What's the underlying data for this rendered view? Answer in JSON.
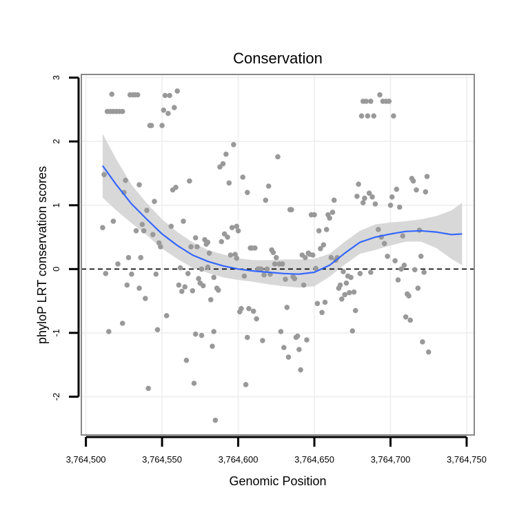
{
  "chart_data": {
    "type": "scatter",
    "title": "Conservation",
    "xlabel": "Genomic Position",
    "ylabel": "phyloP LRT conservation scores",
    "xlim": [
      3764497,
      3764755
    ],
    "ylim": [
      -2.6,
      3.05
    ],
    "x_ticks": [
      3764500,
      3764550,
      3764600,
      3764650,
      3764700,
      3764750
    ],
    "x_tick_labels": [
      "3,764,500",
      "3,764,550",
      "3,764,600",
      "3,764,650",
      "3,764,700",
      "3,764,750"
    ],
    "y_ticks": [
      -2,
      -1,
      0,
      1,
      2,
      3
    ],
    "y_tick_labels": [
      "-2",
      "-1",
      "0",
      "1",
      "2",
      "3"
    ],
    "grid": true,
    "reference_line": {
      "y": 0,
      "style": "dashed"
    },
    "colors": {
      "points": "#999999",
      "smooth_line": "#3366ff",
      "confidence_band": "#d4d4d4",
      "panel_border": "#888888",
      "grid": "#eeeeee",
      "reference_line": "#000000"
    },
    "points": [
      [
        3764511,
        0.65
      ],
      [
        3764512,
        1.48
      ],
      [
        3764513,
        -0.07
      ],
      [
        3764514,
        2.47
      ],
      [
        3764515,
        -0.98
      ],
      [
        3764516,
        2.47
      ],
      [
        3764517,
        2.74
      ],
      [
        3764518,
        2.47
      ],
      [
        3764518,
        0.75
      ],
      [
        3764520,
        2.47
      ],
      [
        3764521,
        0.08
      ],
      [
        3764522,
        2.47
      ],
      [
        3764524,
        -0.85
      ],
      [
        3764524,
        2.47
      ],
      [
        3764525,
        1.2
      ],
      [
        3764526,
        1.39
      ],
      [
        3764527,
        -0.25
      ],
      [
        3764528,
        0.18
      ],
      [
        3764529,
        2.73
      ],
      [
        3764530,
        -0.08
      ],
      [
        3764531,
        2.73
      ],
      [
        3764532,
        2.73
      ],
      [
        3764533,
        0.6
      ],
      [
        3764534,
        2.73
      ],
      [
        3764535,
        1.32
      ],
      [
        3764535,
        -0.3
      ],
      [
        3764536,
        0.18
      ],
      [
        3764537,
        0.7
      ],
      [
        3764538,
        0.6
      ],
      [
        3764539,
        -0.46
      ],
      [
        3764540,
        0.92
      ],
      [
        3764541,
        -1.87
      ],
      [
        3764542,
        2.25
      ],
      [
        3764543,
        2.25
      ],
      [
        3764544,
        0.54
      ],
      [
        3764545,
        1.06
      ],
      [
        3764546,
        -0.08
      ],
      [
        3764547,
        -0.95
      ],
      [
        3764548,
        0.41
      ],
      [
        3764549,
        0.35
      ],
      [
        3764550,
        2.25
      ],
      [
        3764551,
        2.49
      ],
      [
        3764552,
        2.72
      ],
      [
        3764553,
        -0.73
      ],
      [
        3764554,
        2.44
      ],
      [
        3764555,
        2.72
      ],
      [
        3764556,
        0.67
      ],
      [
        3764557,
        1.24
      ],
      [
        3764558,
        2.53
      ],
      [
        3764559,
        1.28
      ],
      [
        3764560,
        2.79
      ],
      [
        3764561,
        -0.25
      ],
      [
        3764562,
        0.02
      ],
      [
        3764563,
        -0.35
      ],
      [
        3764564,
        0.75
      ],
      [
        3764565,
        -0.28
      ],
      [
        3764566,
        -1.43
      ],
      [
        3764567,
        -0.07
      ],
      [
        3764568,
        1.38
      ],
      [
        3764569,
        0.35
      ],
      [
        3764570,
        -0.34
      ],
      [
        3764571,
        -1.79
      ],
      [
        3764572,
        0.49
      ],
      [
        3764572,
        -1.02
      ],
      [
        3764573,
        0.35
      ],
      [
        3764574,
        -0.15
      ],
      [
        3764575,
        -0.22
      ],
      [
        3764576,
        -1.04
      ],
      [
        3764576,
        0.0
      ],
      [
        3764577,
        -0.26
      ],
      [
        3764578,
        0.46
      ],
      [
        3764579,
        0.39
      ],
      [
        3764580,
        0.03
      ],
      [
        3764580,
        0.42
      ],
      [
        3764581,
        0.25
      ],
      [
        3764582,
        -0.48
      ],
      [
        3764583,
        -1.21
      ],
      [
        3764584,
        -0.13
      ],
      [
        3764584,
        -0.98
      ],
      [
        3764585,
        -2.37
      ],
      [
        3764586,
        -0.3
      ],
      [
        3764587,
        -0.33
      ],
      [
        3764588,
        1.6
      ],
      [
        3764589,
        0.43
      ],
      [
        3764590,
        1.65
      ],
      [
        3764591,
        0.55
      ],
      [
        3764592,
        1.8
      ],
      [
        3764593,
        0.5
      ],
      [
        3764594,
        1.35
      ],
      [
        3764595,
        0.22
      ],
      [
        3764596,
        0.65
      ],
      [
        3764597,
        1.95
      ],
      [
        3764598,
        0.23
      ],
      [
        3764599,
        0.67
      ],
      [
        3764599,
        0.17
      ],
      [
        3764600,
        0.6
      ],
      [
        3764601,
        -0.67
      ],
      [
        3764602,
        -0.62
      ],
      [
        3764603,
        1.44
      ],
      [
        3764604,
        -0.11
      ],
      [
        3764605,
        -1.81
      ],
      [
        3764606,
        -1.07
      ],
      [
        3764606,
        1.2
      ],
      [
        3764607,
        -0.62
      ],
      [
        3764608,
        0.33
      ],
      [
        3764609,
        0.33
      ],
      [
        3764610,
        -0.66
      ],
      [
        3764611,
        0.33
      ],
      [
        3764612,
        -0.78
      ],
      [
        3764613,
        0.0
      ],
      [
        3764614,
        0.0
      ],
      [
        3764615,
        0.0
      ],
      [
        3764616,
        -1.12
      ],
      [
        3764617,
        -0.09
      ],
      [
        3764618,
        1.08
      ],
      [
        3764619,
        0.0
      ],
      [
        3764620,
        1.3
      ],
      [
        3764621,
        -0.08
      ],
      [
        3764622,
        0.3
      ],
      [
        3764623,
        0.26
      ],
      [
        3764624,
        0.08
      ],
      [
        3764625,
        0.18
      ],
      [
        3764626,
        1.76
      ],
      [
        3764627,
        0.08
      ],
      [
        3764628,
        -0.98
      ],
      [
        3764629,
        0.08
      ],
      [
        3764630,
        -1.23
      ],
      [
        3764631,
        -0.16
      ],
      [
        3764632,
        -0.6
      ],
      [
        3764633,
        -1.38
      ],
      [
        3764634,
        0.93
      ],
      [
        3764635,
        0.93
      ],
      [
        3764636,
        -0.12
      ],
      [
        3764637,
        -0.15
      ],
      [
        3764638,
        -1.07
      ],
      [
        3764639,
        -1.05
      ],
      [
        3764640,
        -1.26
      ],
      [
        3764641,
        -1.58
      ],
      [
        3764642,
        0.22
      ],
      [
        3764643,
        -0.25
      ],
      [
        3764644,
        0.18
      ],
      [
        3764645,
        -1.11
      ],
      [
        3764646,
        0.25
      ],
      [
        3764647,
        0.23
      ],
      [
        3764648,
        0.85
      ],
      [
        3764649,
        0.22
      ],
      [
        3764650,
        0.85
      ],
      [
        3764651,
        0.01
      ],
      [
        3764652,
        -0.54
      ],
      [
        3764653,
        0.6
      ],
      [
        3764654,
        0.32
      ],
      [
        3764655,
        -0.68
      ],
      [
        3764656,
        0.38
      ],
      [
        3764657,
        -0.52
      ],
      [
        3764658,
        0.62
      ],
      [
        3764659,
        0.85
      ],
      [
        3764660,
        0.8
      ],
      [
        3764661,
        0.18
      ],
      [
        3764662,
        0.89
      ],
      [
        3764663,
        1.08
      ],
      [
        3764664,
        0.14
      ],
      [
        3764665,
        0.18
      ],
      [
        3764666,
        -0.3
      ],
      [
        3764667,
        -0.25
      ],
      [
        3764668,
        -0.47
      ],
      [
        3764669,
        -0.04
      ],
      [
        3764670,
        -0.4
      ],
      [
        3764671,
        -0.22
      ],
      [
        3764672,
        -0.11
      ],
      [
        3764673,
        -0.37
      ],
      [
        3764674,
        -0.13
      ],
      [
        3764675,
        -0.97
      ],
      [
        3764676,
        -0.36
      ],
      [
        3764677,
        -0.65
      ],
      [
        3764678,
        1.14
      ],
      [
        3764679,
        1.33
      ],
      [
        3764680,
        -0.07
      ],
      [
        3764681,
        2.4
      ],
      [
        3764682,
        1.04
      ],
      [
        3764682,
        2.63
      ],
      [
        3764683,
        1.11
      ],
      [
        3764684,
        2.63
      ],
      [
        3764685,
        2.4
      ],
      [
        3764686,
        1.19
      ],
      [
        3764687,
        -0.05
      ],
      [
        3764687,
        2.63
      ],
      [
        3764688,
        1.13
      ],
      [
        3764689,
        2.4
      ],
      [
        3764690,
        1.02
      ],
      [
        3764692,
        0.62
      ],
      [
        3764693,
        2.73
      ],
      [
        3764694,
        0.5
      ],
      [
        3764695,
        2.63
      ],
      [
        3764696,
        0.4
      ],
      [
        3764697,
        2.63
      ],
      [
        3764698,
        0.2
      ],
      [
        3764699,
        2.63
      ],
      [
        3764700,
        1.0
      ],
      [
        3764701,
        1.13
      ],
      [
        3764702,
        2.4
      ],
      [
        3764703,
        0.13
      ],
      [
        3764704,
        1.25
      ],
      [
        3764705,
        -0.17
      ],
      [
        3764706,
        0.97
      ],
      [
        3764707,
        0.0
      ],
      [
        3764708,
        0.52
      ],
      [
        3764709,
        0.06
      ],
      [
        3764710,
        -0.75
      ],
      [
        3764711,
        -0.39
      ],
      [
        3764712,
        -0.42
      ],
      [
        3764713,
        -0.8
      ],
      [
        3764714,
        1.42
      ],
      [
        3764715,
        1.38
      ],
      [
        3764716,
        -0.01
      ],
      [
        3764717,
        1.24
      ],
      [
        3764718,
        -0.3
      ],
      [
        3764719,
        0.61
      ],
      [
        3764720,
        0.2
      ],
      [
        3764721,
        -1.14
      ],
      [
        3764722,
        -0.05
      ],
      [
        3764723,
        1.21
      ],
      [
        3764724,
        1.45
      ],
      [
        3764725,
        -1.3
      ]
    ],
    "smooth": [
      [
        3764511,
        1.62
      ],
      [
        3764520,
        1.32
      ],
      [
        3764530,
        1.02
      ],
      [
        3764540,
        0.78
      ],
      [
        3764550,
        0.55
      ],
      [
        3764560,
        0.37
      ],
      [
        3764570,
        0.22
      ],
      [
        3764580,
        0.12
      ],
      [
        3764590,
        0.05
      ],
      [
        3764600,
        0.0
      ],
      [
        3764610,
        -0.03
      ],
      [
        3764620,
        -0.05
      ],
      [
        3764630,
        -0.07
      ],
      [
        3764640,
        -0.08
      ],
      [
        3764650,
        -0.05
      ],
      [
        3764660,
        0.06
      ],
      [
        3764670,
        0.25
      ],
      [
        3764680,
        0.42
      ],
      [
        3764690,
        0.5
      ],
      [
        3764700,
        0.55
      ],
      [
        3764710,
        0.59
      ],
      [
        3764720,
        0.6
      ],
      [
        3764730,
        0.58
      ],
      [
        3764740,
        0.54
      ],
      [
        3764747,
        0.55
      ]
    ],
    "ci_upper": [
      [
        3764511,
        2.12
      ],
      [
        3764520,
        1.72
      ],
      [
        3764530,
        1.32
      ],
      [
        3764540,
        1.03
      ],
      [
        3764550,
        0.78
      ],
      [
        3764560,
        0.58
      ],
      [
        3764570,
        0.42
      ],
      [
        3764580,
        0.3
      ],
      [
        3764590,
        0.23
      ],
      [
        3764600,
        0.17
      ],
      [
        3764610,
        0.14
      ],
      [
        3764620,
        0.14
      ],
      [
        3764630,
        0.15
      ],
      [
        3764640,
        0.15
      ],
      [
        3764650,
        0.16
      ],
      [
        3764660,
        0.24
      ],
      [
        3764670,
        0.43
      ],
      [
        3764680,
        0.6
      ],
      [
        3764690,
        0.7
      ],
      [
        3764700,
        0.73
      ],
      [
        3764710,
        0.75
      ],
      [
        3764720,
        0.78
      ],
      [
        3764730,
        0.83
      ],
      [
        3764740,
        0.92
      ],
      [
        3764747,
        1.04
      ]
    ],
    "ci_lower": [
      [
        3764511,
        1.12
      ],
      [
        3764520,
        0.92
      ],
      [
        3764530,
        0.72
      ],
      [
        3764540,
        0.53
      ],
      [
        3764550,
        0.32
      ],
      [
        3764560,
        0.16
      ],
      [
        3764570,
        0.02
      ],
      [
        3764580,
        -0.06
      ],
      [
        3764590,
        -0.13
      ],
      [
        3764600,
        -0.17
      ],
      [
        3764610,
        -0.2
      ],
      [
        3764620,
        -0.24
      ],
      [
        3764630,
        -0.27
      ],
      [
        3764640,
        -0.29
      ],
      [
        3764650,
        -0.27
      ],
      [
        3764660,
        -0.12
      ],
      [
        3764670,
        0.07
      ],
      [
        3764680,
        0.24
      ],
      [
        3764690,
        0.3
      ],
      [
        3764700,
        0.37
      ],
      [
        3764710,
        0.43
      ],
      [
        3764720,
        0.43
      ],
      [
        3764730,
        0.33
      ],
      [
        3764740,
        0.16
      ],
      [
        3764747,
        0.06
      ]
    ]
  }
}
